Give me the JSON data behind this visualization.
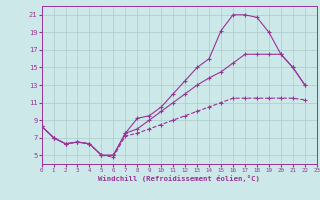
{
  "xlabel": "Windchill (Refroidissement éolien,°C)",
  "bg_color": "#cce8e8",
  "grid_color": "#aacccc",
  "line_color": "#993399",
  "xmin": 0,
  "xmax": 23,
  "ymin": 4,
  "ymax": 22,
  "yticks": [
    5,
    7,
    9,
    11,
    13,
    15,
    17,
    19,
    21
  ],
  "xticks": [
    0,
    1,
    2,
    3,
    4,
    5,
    6,
    7,
    8,
    9,
    10,
    11,
    12,
    13,
    14,
    15,
    16,
    17,
    18,
    19,
    20,
    21,
    22,
    23
  ],
  "curve1_x": [
    0,
    1,
    2,
    3,
    4,
    5,
    6,
    7,
    8,
    9,
    10,
    11,
    12,
    13,
    14,
    15,
    16,
    17,
    18,
    19,
    20,
    21,
    22
  ],
  "curve1_y": [
    8.3,
    7.0,
    6.3,
    6.5,
    6.3,
    5.0,
    5.0,
    7.5,
    9.2,
    9.5,
    10.5,
    12.0,
    13.5,
    15.0,
    16.0,
    19.2,
    21.0,
    21.0,
    20.7,
    19.0,
    16.5,
    15.0,
    13.0
  ],
  "curve2_x": [
    0,
    1,
    2,
    3,
    4,
    5,
    6,
    7,
    8,
    9,
    10,
    11,
    12,
    13,
    14,
    15,
    16,
    17,
    18,
    19,
    20,
    21,
    22
  ],
  "curve2_y": [
    8.3,
    7.0,
    6.3,
    6.5,
    6.3,
    5.0,
    5.0,
    7.5,
    8.0,
    9.0,
    10.0,
    11.0,
    12.0,
    13.0,
    13.8,
    14.5,
    15.5,
    16.5,
    16.5,
    16.5,
    16.5,
    15.0,
    13.0
  ],
  "curve3_x": [
    0,
    1,
    2,
    3,
    4,
    5,
    6,
    7,
    8,
    9,
    10,
    11,
    12,
    13,
    14,
    15,
    16,
    17,
    18,
    19,
    20,
    21,
    22
  ],
  "curve3_y": [
    8.3,
    7.0,
    6.3,
    6.5,
    6.3,
    5.0,
    4.8,
    7.2,
    7.5,
    8.0,
    8.5,
    9.0,
    9.5,
    10.0,
    10.5,
    11.0,
    11.5,
    11.5,
    11.5,
    11.5,
    11.5,
    11.5,
    11.3
  ]
}
